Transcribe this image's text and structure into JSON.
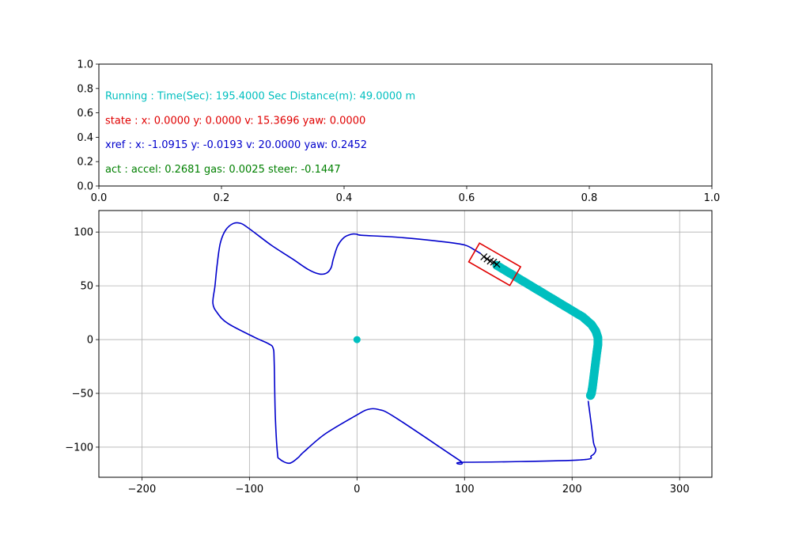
{
  "info_panel": {
    "lines": [
      {
        "text": "Running : Time(Sec): 195.4000 Sec Distance(m): 49.0000 m",
        "color": "#00bfbf",
        "y": 0.74
      },
      {
        "text": "state :  x: 0.0000 y: 0.0000 v: 15.3696 yaw: 0.0000",
        "color": "#e00000",
        "y": 0.54
      },
      {
        "text": "xref :  x: -1.0915 y: -0.0193 v: 20.0000 yaw: 0.2452",
        "color": "#0000cc",
        "y": 0.34
      },
      {
        "text": "act :  accel: 0.2681 gas: 0.0025 steer: -0.1447",
        "color": "#008000",
        "y": 0.14
      }
    ],
    "x_ticks": [
      "0.0",
      "0.2",
      "0.4",
      "0.6",
      "0.8",
      "1.0"
    ],
    "y_ticks": [
      "0.0",
      "0.2",
      "0.4",
      "0.6",
      "0.8",
      "1.0"
    ]
  },
  "chart_data": {
    "type": "line",
    "xlim": [
      -240,
      330
    ],
    "ylim": [
      -128,
      120
    ],
    "grid": true,
    "x_ticks": [
      -200,
      -100,
      0,
      100,
      200,
      300
    ],
    "y_ticks": [
      -100,
      -50,
      0,
      50,
      100
    ],
    "x_tick_labels": [
      "−200",
      "−100",
      "0",
      "100",
      "200",
      "300"
    ],
    "y_tick_labels": [
      "−100",
      "−50",
      "0",
      "50",
      "100"
    ],
    "track": {
      "color": "#0000cc",
      "points": [
        [
          215,
          -57
        ],
        [
          218,
          -80
        ],
        [
          220,
          -96
        ],
        [
          222,
          -103
        ],
        [
          218,
          -108
        ],
        [
          205,
          -112
        ],
        [
          100,
          -114
        ],
        [
          95,
          -112
        ],
        [
          35,
          -72
        ],
        [
          20,
          -65
        ],
        [
          10,
          -65
        ],
        [
          0,
          -70
        ],
        [
          -30,
          -88
        ],
        [
          -50,
          -105
        ],
        [
          -55,
          -110
        ],
        [
          -63,
          -115
        ],
        [
          -72,
          -111
        ],
        [
          -74,
          -105
        ],
        [
          -76,
          -70
        ],
        [
          -77,
          -20
        ],
        [
          -78,
          -8
        ],
        [
          -82,
          -4
        ],
        [
          -95,
          2
        ],
        [
          -120,
          15
        ],
        [
          -130,
          25
        ],
        [
          -134,
          34
        ],
        [
          -132,
          50
        ],
        [
          -130,
          70
        ],
        [
          -127,
          90
        ],
        [
          -122,
          102
        ],
        [
          -115,
          108
        ],
        [
          -108,
          108
        ],
        [
          -100,
          103
        ],
        [
          -80,
          88
        ],
        [
          -60,
          75
        ],
        [
          -45,
          65
        ],
        [
          -35,
          61
        ],
        [
          -28,
          62
        ],
        [
          -24,
          67
        ],
        [
          -22,
          75
        ],
        [
          -18,
          87
        ],
        [
          -12,
          95
        ],
        [
          -5,
          98
        ],
        [
          0,
          98
        ],
        [
          5,
          97
        ],
        [
          40,
          95
        ],
        [
          80,
          91
        ],
        [
          100,
          88
        ],
        [
          110,
          83
        ],
        [
          115,
          80
        ]
      ]
    },
    "driven_path": {
      "color": "#00bfbf",
      "points": [
        [
          130,
          69
        ],
        [
          140,
          63
        ],
        [
          150,
          57
        ],
        [
          160,
          51
        ],
        [
          170,
          45
        ],
        [
          180,
          39
        ],
        [
          190,
          33
        ],
        [
          200,
          27
        ],
        [
          210,
          21
        ],
        [
          218,
          14
        ],
        [
          222,
          8
        ],
        [
          224,
          2
        ],
        [
          224,
          -5
        ],
        [
          223,
          -12
        ],
        [
          222,
          -20
        ],
        [
          221,
          -28
        ],
        [
          220,
          -36
        ],
        [
          219,
          -44
        ],
        [
          218,
          -50
        ],
        [
          217,
          -52
        ]
      ]
    },
    "origin_marker": {
      "x": 0,
      "y": 0,
      "color": "#00bfbf"
    },
    "vehicle": {
      "center": [
        128,
        70
      ],
      "length": 44,
      "width": 20,
      "heading_deg": -30,
      "color": "#e00000"
    },
    "horizon": {
      "color": "#000000",
      "points": [
        [
          118,
          77
        ],
        [
          121,
          75
        ],
        [
          124,
          73
        ],
        [
          127,
          72
        ],
        [
          130,
          70
        ]
      ]
    }
  }
}
